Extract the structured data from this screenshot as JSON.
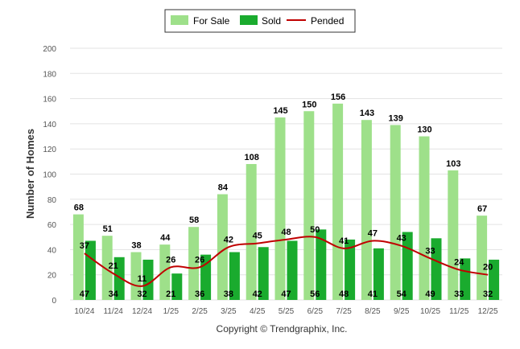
{
  "chart_data": {
    "type": "bar",
    "ylabel": "Number of Homes",
    "ylim": [
      0,
      200
    ],
    "yticks": [
      0,
      20,
      40,
      60,
      80,
      100,
      120,
      140,
      160,
      180,
      200
    ],
    "categories": [
      "10/24",
      "11/24",
      "12/24",
      "1/25",
      "2/25",
      "3/25",
      "4/25",
      "5/25",
      "6/25",
      "7/25",
      "8/25",
      "9/25",
      "10/25",
      "11/25",
      "12/25"
    ],
    "series": [
      {
        "name": "For Sale",
        "kind": "bar",
        "color": "#9ee08a",
        "values": [
          68,
          51,
          38,
          44,
          58,
          84,
          108,
          145,
          150,
          156,
          143,
          139,
          130,
          103,
          67
        ]
      },
      {
        "name": "Sold",
        "kind": "bar",
        "color": "#1aab2e",
        "values": [
          47,
          34,
          32,
          21,
          36,
          38,
          42,
          47,
          56,
          48,
          41,
          54,
          49,
          33,
          32
        ]
      },
      {
        "name": "Pended",
        "kind": "line",
        "color": "#c00000",
        "values": [
          37,
          21,
          11,
          26,
          26,
          42,
          45,
          48,
          50,
          41,
          47,
          43,
          33,
          24,
          20
        ]
      }
    ],
    "legend_position": "top-center",
    "footer": "Copyright © Trendgraphix, Inc."
  }
}
